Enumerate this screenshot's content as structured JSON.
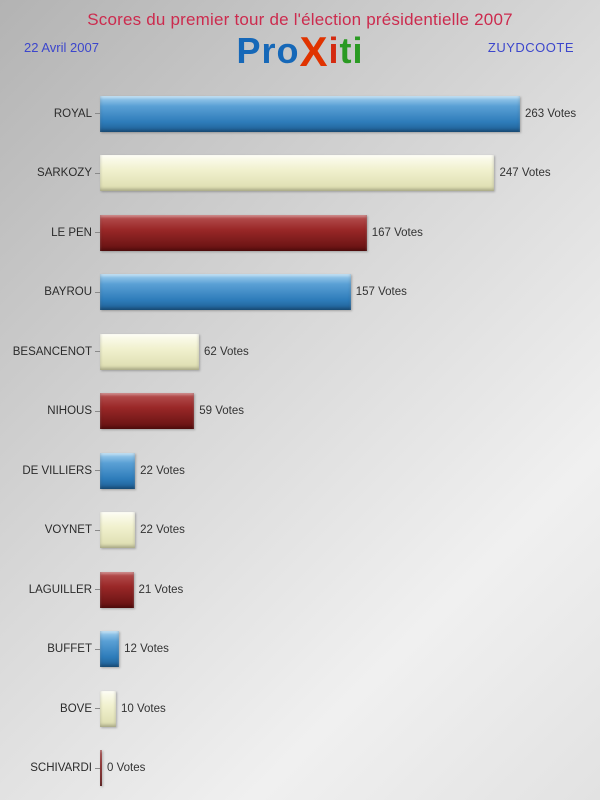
{
  "header": {
    "title": "Scores du premier tour de l'élection présidentielle 2007",
    "date": "22 Avril 2007",
    "location": "ZUYDCOOTE",
    "logo_segments": [
      {
        "text": "P",
        "color": "#1668b8",
        "big": false
      },
      {
        "text": "r",
        "color": "#1668b8",
        "big": false
      },
      {
        "text": "o",
        "color": "#1668b8",
        "big": false
      },
      {
        "text": "X",
        "color": "#e03300",
        "big": true
      },
      {
        "text": "i",
        "color": "#d42a10",
        "big": false
      },
      {
        "text": "t",
        "color": "#2a9a22",
        "big": false
      },
      {
        "text": "i",
        "color": "#2a9a22",
        "big": false
      }
    ]
  },
  "chart_data": {
    "type": "bar",
    "orientation": "horizontal",
    "title": "Scores du premier tour de l'élection présidentielle 2007",
    "subtitle_left": "22 Avril 2007",
    "subtitle_right": "ZUYDCOOTE",
    "categories": [
      "ROYAL",
      "SARKOZY",
      "LE PEN",
      "BAYROU",
      "BESANCENOT",
      "NIHOUS",
      "DE VILLIERS",
      "VOYNET",
      "LAGUILLER",
      "BUFFET",
      "BOVE",
      "SCHIVARDI"
    ],
    "values": [
      263,
      247,
      167,
      157,
      62,
      59,
      22,
      22,
      21,
      12,
      10,
      0
    ],
    "value_suffix": " Votes",
    "xlim": [
      0,
      270
    ],
    "grid": false,
    "legend": "none",
    "bar_color_cycle_names": [
      "blue",
      "cream",
      "darkred"
    ],
    "bar_color_cycle_hex": [
      "#2e7cba",
      "#e9e9c2",
      "#8a1d1d"
    ]
  },
  "palette": {
    "title_red": "#cc2b4e",
    "subtitle_blue": "#3c46cc",
    "background_gray": "#d9d9d9",
    "label_text": "#2b2b2b"
  }
}
